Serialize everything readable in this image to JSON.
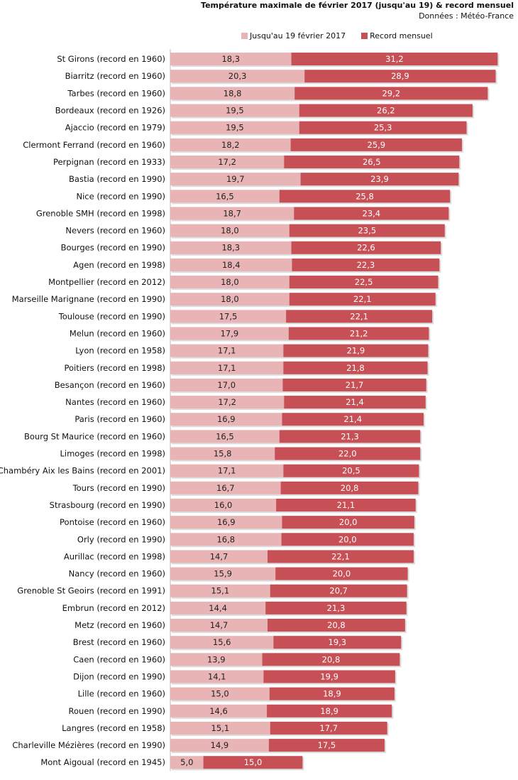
{
  "chart_data": {
    "type": "bar",
    "orientation": "horizontal",
    "stacked": true,
    "title": "Température maximale de février 2017 (jusqu'au 19) & record mensuel",
    "subtitle": "Données : Météo-France",
    "legend_position": "top",
    "colors": {
      "jusqu": "#e8b4b6",
      "record": "#c65055",
      "text": "#111111"
    },
    "series": [
      {
        "name": "Jusqu'au 19 février 2017",
        "key": "jusqu",
        "values": [
          18.3,
          20.3,
          18.8,
          19.5,
          19.5,
          18.2,
          17.2,
          19.7,
          16.5,
          18.7,
          18.0,
          18.3,
          18.4,
          18.0,
          18.0,
          17.5,
          17.9,
          17.1,
          17.1,
          17.0,
          17.2,
          16.9,
          16.5,
          15.8,
          17.1,
          16.7,
          16.0,
          16.9,
          16.8,
          14.7,
          15.9,
          15.1,
          14.4,
          14.7,
          15.6,
          13.9,
          14.1,
          15.0,
          14.6,
          15.1,
          14.9,
          5.0
        ],
        "labels": [
          "18,3",
          "20,3",
          "18,8",
          "19,5",
          "19,5",
          "18,2",
          "17,2",
          "19,7",
          "16,5",
          "18,7",
          "18,0",
          "18,3",
          "18,4",
          "18,0",
          "18,0",
          "17,5",
          "17,9",
          "17,1",
          "17,1",
          "17,0",
          "17,2",
          "16,9",
          "16,5",
          "15,8",
          "17,1",
          "16,7",
          "16,0",
          "16,9",
          "16,8",
          "14,7",
          "15,9",
          "15,1",
          "14,4",
          "14,7",
          "15,6",
          "13,9",
          "14,1",
          "15,0",
          "14,6",
          "15,1",
          "14,9",
          "5,0"
        ]
      },
      {
        "name": "Record mensuel",
        "key": "record",
        "values": [
          31.2,
          28.9,
          29.2,
          26.2,
          25.3,
          25.9,
          26.5,
          23.9,
          25.8,
          23.4,
          23.5,
          22.6,
          22.3,
          22.5,
          22.1,
          22.1,
          21.2,
          21.9,
          21.8,
          21.7,
          21.4,
          21.4,
          21.3,
          22.0,
          20.5,
          20.8,
          21.1,
          20.0,
          20.0,
          22.1,
          20.0,
          20.7,
          21.3,
          20.8,
          19.3,
          20.8,
          19.9,
          18.9,
          18.9,
          17.7,
          17.5,
          15.0
        ],
        "labels": [
          "31,2",
          "28,9",
          "29,2",
          "26,2",
          "25,3",
          "25,9",
          "26,5",
          "23,9",
          "25,8",
          "23,4",
          "23,5",
          "22,6",
          "22,3",
          "22,5",
          "22,1",
          "22,1",
          "21,2",
          "21,9",
          "21,8",
          "21,7",
          "21,4",
          "21,4",
          "21,3",
          "22,0",
          "20,5",
          "20,8",
          "21,1",
          "20,0",
          "20,0",
          "22,1",
          "20,0",
          "20,7",
          "21,3",
          "20,8",
          "19,3",
          "20,8",
          "19,9",
          "18,9",
          "18,9",
          "17,7",
          "17,5",
          "15,0"
        ]
      }
    ],
    "categories": [
      "St Girons (record en 1960)",
      "Biarritz (record en 1960)",
      "Tarbes (record en 1960)",
      "Bordeaux (record en 1926)",
      "Ajaccio (record en 1979)",
      "Clermont Ferrand (record en 1960)",
      "Perpignan (record en 1933)",
      "Bastia (record en 1990)",
      "Nice (record en 1990)",
      "Grenoble SMH (record en 1998)",
      "Nevers (record en 1960)",
      "Bourges (record en 1990)",
      "Agen (record en 1998)",
      "Montpellier (record en 2012)",
      "Marseille Marignane (record en 1990)",
      "Toulouse (record en 1990)",
      "Melun (record en 1960)",
      "Lyon (record en 1958)",
      "Poitiers (record en 1998)",
      "Besançon (record en 1960)",
      "Nantes (record en 1960)",
      "Paris (record en 1960)",
      "Bourg St Maurice (record en 1960)",
      "Limoges (record en 1998)",
      "Chambéry Aix les Bains (record en 2001)",
      "Tours (record en 1990)",
      "Strasbourg (record en 1990)",
      "Pontoise (record en 1960)",
      "Orly (record en 1990)",
      "Aurillac (record en 1998)",
      "Nancy (record en 1960)",
      "Grenoble St Geoirs (record en 1991)",
      "Embrun (record en 2012)",
      "Metz (record en 1960)",
      "Brest (record en 1960)",
      "Caen (record en 1960)",
      "Dijon (record en 1990)",
      "Lille (record en 1960)",
      "Rouen (record en 1990)",
      "Langres (record en 1958)",
      "Charleville Mézières (record en 1990)",
      "Mont Aigoual (record en 1945)"
    ]
  }
}
